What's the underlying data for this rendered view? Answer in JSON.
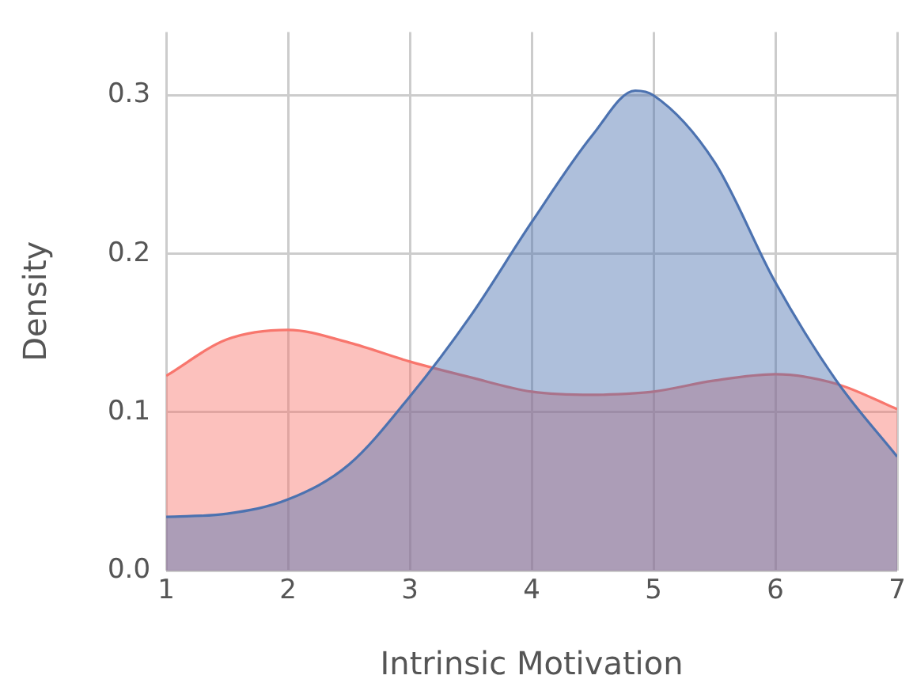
{
  "chart_data": {
    "type": "area",
    "xlabel": "Intrinsic Motivation",
    "ylabel": "Density",
    "x": [
      1,
      1.5,
      2,
      2.5,
      3,
      3.5,
      4,
      4.5,
      4.85,
      5,
      5.5,
      6,
      6.5,
      7
    ],
    "series": [
      {
        "color": "#4c72b0",
        "values": [
          0.034,
          0.036,
          0.045,
          0.067,
          0.11,
          0.161,
          0.22,
          0.275,
          0.303,
          0.3,
          0.258,
          0.182,
          0.12,
          0.072
        ]
      },
      {
        "color": "#f8766d",
        "values": [
          0.123,
          0.146,
          0.152,
          0.144,
          0.132,
          0.122,
          0.113,
          0.111,
          0.112,
          0.113,
          0.12,
          0.124,
          0.118,
          0.102
        ]
      }
    ],
    "xlim": [
      1,
      7
    ],
    "xticks": [
      1,
      2,
      3,
      4,
      5,
      6,
      7
    ],
    "ylim": [
      0,
      0.34
    ],
    "yticks": [
      {
        "value": 0,
        "label": "0.0"
      },
      {
        "value": 0.1,
        "label": "0.1"
      },
      {
        "value": 0.2,
        "label": "0.2"
      },
      {
        "value": 0.3,
        "label": "0.3"
      }
    ],
    "grid": true,
    "legend": false,
    "marker": "none",
    "line_style": "solid"
  }
}
